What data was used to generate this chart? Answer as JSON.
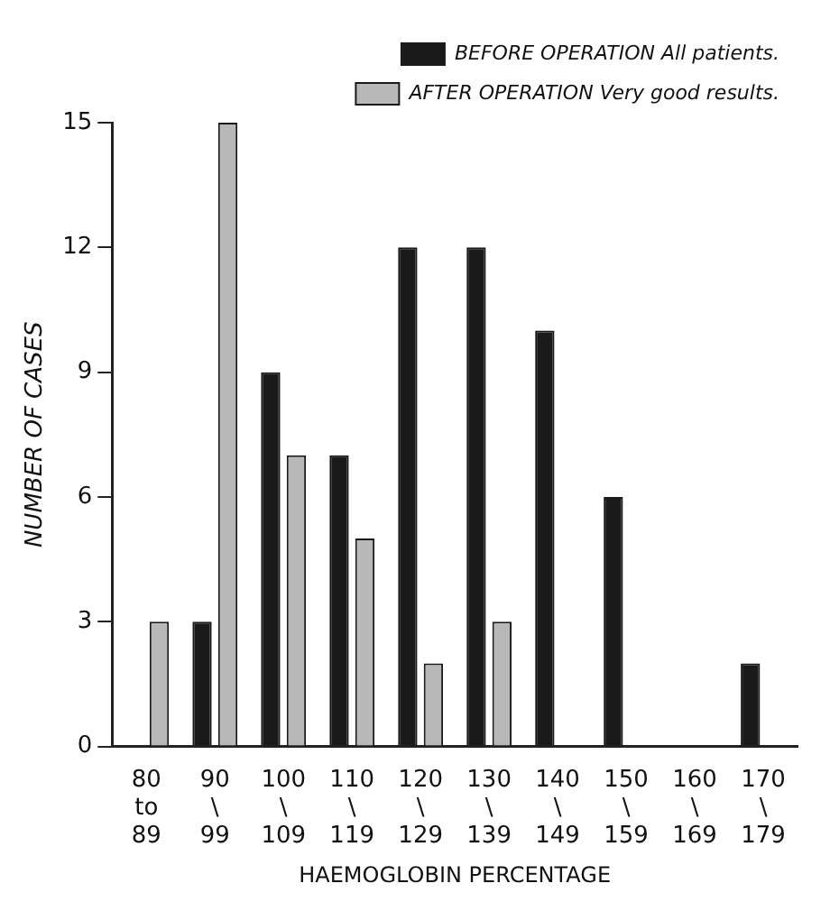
{
  "chart_data": {
    "type": "bar",
    "xlabel": "HAEMOGLOBIN PERCENTAGE",
    "ylabel": "NUMBER OF CASES",
    "categories": [
      "80 to 89",
      "90 \\ 99",
      "100 \\ 109",
      "110 \\ 119",
      "120 \\ 129",
      "130 \\ 139",
      "140 \\ 149",
      "150 \\ 159",
      "160 \\ 169",
      "170 \\ 179"
    ],
    "series": [
      {
        "name": "BEFORE OPERATION All patients.",
        "color": "#1a1a1a",
        "values": [
          0,
          3,
          9,
          7,
          12,
          12,
          10,
          6,
          0,
          2
        ]
      },
      {
        "name": "AFTER OPERATION Very good results.",
        "color": "#b8b8b8",
        "values": [
          3,
          15,
          7,
          5,
          2,
          3,
          0,
          0,
          0,
          0
        ]
      }
    ],
    "ylim": [
      0,
      15
    ],
    "yticks": [
      0,
      3,
      6,
      9,
      12,
      15
    ],
    "grid": false,
    "legend": "top right"
  }
}
